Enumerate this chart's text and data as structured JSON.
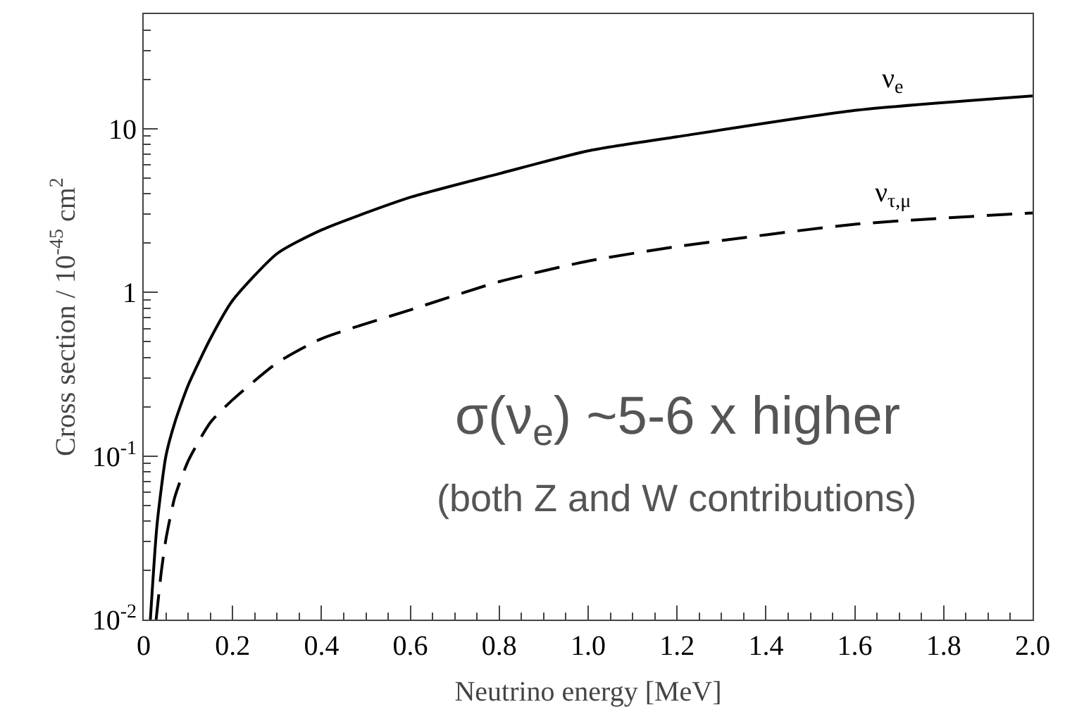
{
  "chart_data": {
    "type": "line",
    "xlabel": "Neutrino energy [MeV]",
    "ylabel": "Cross section / 10$^{-45}$ cm$^{2}$",
    "log": "y",
    "xlim": [
      0,
      2.0
    ],
    "xticks": [
      0,
      0.2,
      0.4,
      0.6,
      0.8,
      {
        "value": 1.0,
        "label": "1.0"
      },
      1.2,
      1.4,
      1.6,
      1.8,
      {
        "value": 2.0,
        "label": "2.0"
      }
    ],
    "ylim": [
      0.01,
      50
    ],
    "yticks": [
      {
        "value": 0.01,
        "label": "10$^{-2}$"
      },
      {
        "value": 0.1,
        "label": "10$^{-1}$"
      },
      1,
      10
    ],
    "grid": false,
    "legend": false,
    "marker": "none",
    "series": [
      {
        "name": "ν$_{e}$",
        "color": "#000000",
        "line_style": "solid",
        "x": [
          0.015,
          0.03,
          0.05,
          0.07,
          0.1,
          0.15,
          0.2,
          0.3,
          0.4,
          0.6,
          0.8,
          1.0,
          1.2,
          1.6,
          2.0
        ],
        "values": [
          0.01,
          0.038,
          0.1,
          0.16,
          0.27,
          0.52,
          0.89,
          1.72,
          2.4,
          3.8,
          5.3,
          7.3,
          8.9,
          12.9,
          15.8
        ]
      },
      {
        "name": "ν$_{τ,μ}$",
        "color": "#000000",
        "line_style": "dashed",
        "x": [
          0.028,
          0.04,
          0.05,
          0.07,
          0.1,
          0.15,
          0.2,
          0.3,
          0.4,
          0.6,
          0.8,
          1.0,
          1.2,
          1.6,
          2.0
        ],
        "values": [
          0.01,
          0.02,
          0.031,
          0.056,
          0.093,
          0.16,
          0.22,
          0.37,
          0.52,
          0.78,
          1.16,
          1.55,
          1.9,
          2.6,
          3.05
        ]
      }
    ],
    "annotations": [
      "σ(ν$_{e}$) ~5-6 x higher",
      "(both Z and W contributions)"
    ]
  }
}
